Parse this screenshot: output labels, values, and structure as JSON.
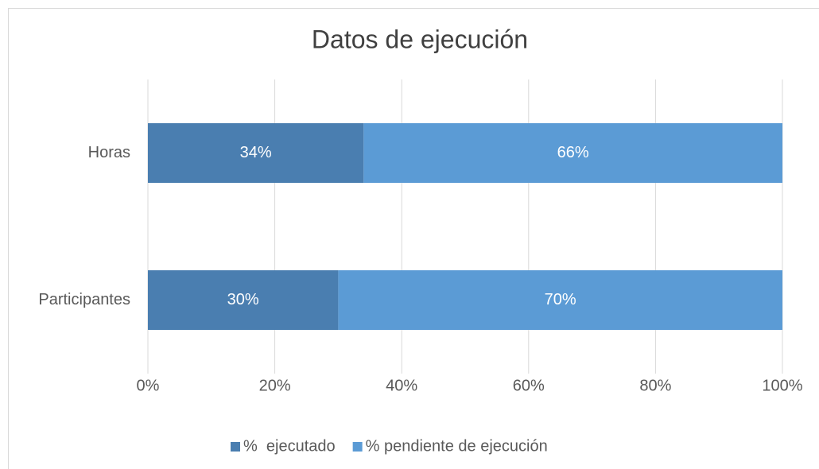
{
  "chart_data": {
    "type": "stacked_barh",
    "title": "Datos de ejecución",
    "categories": [
      "Horas",
      "Participantes"
    ],
    "series": [
      {
        "name": "%  ejecutado",
        "color": "#4a7eb0",
        "values": [
          34,
          30
        ],
        "value_labels": [
          "34%",
          "30%"
        ]
      },
      {
        "name": "% pendiente de ejecución",
        "color": "#5b9bd5",
        "values": [
          66,
          70
        ],
        "value_labels": [
          "66%",
          "70%"
        ]
      }
    ],
    "xlim": [
      0,
      100
    ],
    "xticks": [
      {
        "value": 0,
        "label": "0%"
      },
      {
        "value": 20,
        "label": "20%"
      },
      {
        "value": 40,
        "label": "40%"
      },
      {
        "value": 60,
        "label": "60%"
      },
      {
        "value": 80,
        "label": "80%"
      },
      {
        "value": 100,
        "label": "100%"
      }
    ],
    "grid": true,
    "legend": "bottom"
  }
}
